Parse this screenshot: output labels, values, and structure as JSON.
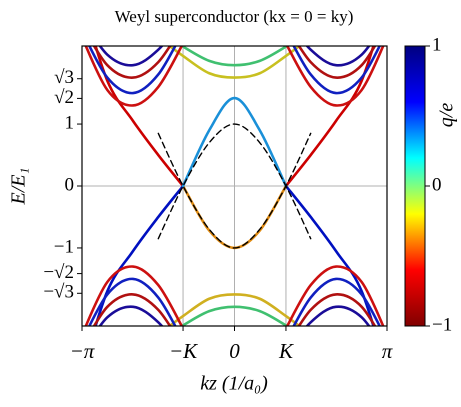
{
  "chart_data": {
    "type": "line",
    "title": "Weyl superconductor (kx = 0 = ky)",
    "x_label": "kz (1/a₀)",
    "y_label": "E/E₁",
    "x": [
      -3.14159,
      -2.62,
      -2.09,
      -1.57,
      -1.06,
      -0.52,
      0,
      0.52,
      1.06,
      1.57,
      2.09,
      2.62,
      3.14159
    ],
    "xlim": [
      -3.14159,
      3.14159
    ],
    "ylim": [
      -2.26,
      2.26
    ],
    "xticks": [
      {
        "value": -3.14159,
        "label": "−π"
      },
      {
        "value": -1.06,
        "label": "−K"
      },
      0,
      {
        "value": 1.06,
        "label": "K"
      },
      {
        "value": 3.14159,
        "label": "π"
      }
    ],
    "yticks": [
      {
        "value": -1.732,
        "label": "−√3"
      },
      {
        "value": -1.414,
        "label": "−√2"
      },
      {
        "value": -1,
        "label": "−1"
      },
      0,
      1,
      {
        "value": 1.414,
        "label": "√2"
      },
      {
        "value": 1.732,
        "label": "√3"
      }
    ],
    "grid": true,
    "series": [
      {
        "color": "#cc0000",
        "values": [
          3.0,
          1.7,
          1.05,
          0.5,
          0,
          null,
          null,
          null,
          0,
          0.5,
          1.05,
          1.7,
          3.0
        ]
      },
      {
        "color": "#e08a10",
        "values": [
          null,
          null,
          null,
          null,
          0,
          -0.72,
          -1.0,
          -0.72,
          0,
          null,
          null,
          null,
          null
        ]
      },
      {
        "color": "#0010c0",
        "values": [
          -3.0,
          -1.7,
          -1.05,
          -0.5,
          0,
          null,
          null,
          null,
          0,
          -0.5,
          -1.05,
          -1.7,
          -3.0
        ]
      },
      {
        "color": "#1a90d8",
        "values": [
          null,
          null,
          null,
          null,
          0,
          0.9,
          1.42,
          0.9,
          0,
          null,
          null,
          null,
          null
        ]
      },
      {
        "color": "#c8c020",
        "values": [
          null,
          null,
          null,
          2.4,
          2.1,
          1.82,
          1.75,
          1.82,
          2.1,
          2.4,
          null,
          null,
          null
        ]
      },
      {
        "color": "#40c070",
        "values": [
          null,
          null,
          null,
          2.5,
          2.25,
          2.02,
          1.95,
          2.02,
          2.25,
          2.5,
          null,
          null,
          null
        ]
      },
      {
        "color": "#cc1010",
        "values": [
          2.4,
          1.55,
          1.3,
          1.6,
          2.3,
          null,
          null,
          null,
          2.3,
          1.6,
          1.3,
          1.55,
          2.4
        ]
      },
      {
        "color": "#1020c0",
        "values": [
          2.5,
          1.75,
          1.5,
          1.8,
          2.5,
          null,
          null,
          null,
          2.5,
          1.8,
          1.5,
          1.75,
          2.5
        ]
      },
      {
        "color": "#b01010",
        "values": [
          2.6,
          1.95,
          1.75,
          2.0,
          2.6,
          null,
          null,
          null,
          2.6,
          2.0,
          1.75,
          1.95,
          2.6
        ]
      },
      {
        "color": "#1a0c98",
        "values": [
          2.7,
          2.12,
          1.95,
          2.2,
          2.7,
          null,
          null,
          null,
          2.7,
          2.2,
          1.95,
          2.12,
          2.7
        ]
      },
      {
        "color": "#d0b020",
        "values": [
          null,
          null,
          null,
          -2.4,
          -2.1,
          -1.82,
          -1.75,
          -1.82,
          -2.1,
          -2.4,
          null,
          null,
          null
        ]
      },
      {
        "color": "#40c070",
        "values": [
          null,
          null,
          null,
          -2.5,
          -2.25,
          -2.02,
          -1.95,
          -2.02,
          -2.25,
          -2.5,
          null,
          null,
          null
        ]
      },
      {
        "color": "#cc1010",
        "values": [
          -2.4,
          -1.55,
          -1.3,
          -1.6,
          -2.3,
          null,
          null,
          null,
          -2.3,
          -1.6,
          -1.3,
          -1.55,
          -2.4
        ]
      },
      {
        "color": "#1020c0",
        "values": [
          -2.5,
          -1.75,
          -1.5,
          -1.8,
          -2.5,
          null,
          null,
          null,
          -2.5,
          -1.8,
          -1.5,
          -1.75,
          -2.5
        ]
      },
      {
        "color": "#b01010",
        "values": [
          -2.6,
          -1.95,
          -1.75,
          -2.0,
          -2.6,
          null,
          null,
          null,
          -2.6,
          -2.0,
          -1.75,
          -1.95,
          -2.6
        ]
      },
      {
        "color": "#1a0c98",
        "values": [
          -2.7,
          -2.12,
          -1.95,
          -2.2,
          -2.7,
          null,
          null,
          null,
          -2.7,
          -2.2,
          -1.95,
          -2.12,
          -2.7
        ]
      },
      {
        "color": "#000000",
        "dashed": true,
        "values": [
          null,
          null,
          null,
          -0.85,
          0,
          0.7,
          1.0,
          0.7,
          0,
          -0.85,
          null,
          null,
          null
        ]
      },
      {
        "color": "#000000",
        "dashed": true,
        "values": [
          null,
          null,
          null,
          0.85,
          0,
          -0.7,
          -1.0,
          -0.7,
          0,
          0.85,
          null,
          null,
          null
        ]
      }
    ],
    "colorbar": {
      "label": "q/e",
      "lim": [
        -1,
        1
      ],
      "ticks": [
        1,
        0,
        {
          "value": -1,
          "label": "−1"
        }
      ],
      "colors": [
        "#800000",
        "#ff0000",
        "#ffff00",
        "#00ffff",
        "#0000ff",
        "#000080"
      ]
    }
  }
}
